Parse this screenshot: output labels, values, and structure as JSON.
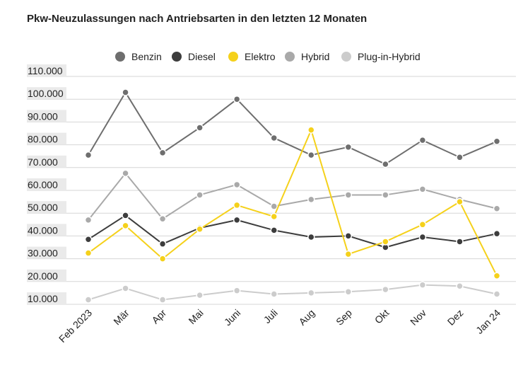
{
  "chart_data": {
    "type": "line",
    "title": "Pkw-Neuzulassungen nach Antriebsarten in den letzten 12 Monaten",
    "categories": [
      "Feb 2023",
      "Mär",
      "Apr",
      "Mai",
      "Juni",
      "Juli",
      "Aug",
      "Sep",
      "Okt",
      "Nov",
      "Dez",
      "Jan 24"
    ],
    "yticks": [
      "10.000",
      "20.000",
      "30.000",
      "40.000",
      "50.000",
      "60.000",
      "70.000",
      "80.000",
      "90.000",
      "100.000",
      "110.000"
    ],
    "ylim": [
      10000,
      110000
    ],
    "grid": true,
    "legend_position": "top",
    "series": [
      {
        "name": "Benzin",
        "color": "#6e6e6e",
        "values": [
          75500,
          103000,
          76500,
          87500,
          100000,
          83000,
          75500,
          79000,
          71500,
          82000,
          74500,
          81500
        ]
      },
      {
        "name": "Diesel",
        "color": "#3d3d3d",
        "values": [
          38500,
          49000,
          36500,
          43500,
          47000,
          42500,
          39500,
          40000,
          35000,
          39500,
          37500,
          41000
        ]
      },
      {
        "name": "Elektro",
        "color": "#f5d11b",
        "values": [
          32500,
          44500,
          30000,
          43000,
          53500,
          48500,
          86500,
          32000,
          37500,
          45000,
          55000,
          22500
        ]
      },
      {
        "name": "Hybrid",
        "color": "#a9a9a9",
        "values": [
          47000,
          67500,
          47500,
          58000,
          62500,
          53000,
          56000,
          58000,
          58000,
          60500,
          56000,
          52000
        ]
      },
      {
        "name": "Plug-in-Hybrid",
        "color": "#cccccc",
        "values": [
          12000,
          17000,
          12000,
          14000,
          16000,
          14500,
          15000,
          15500,
          16500,
          18500,
          18000,
          14500
        ]
      }
    ]
  }
}
